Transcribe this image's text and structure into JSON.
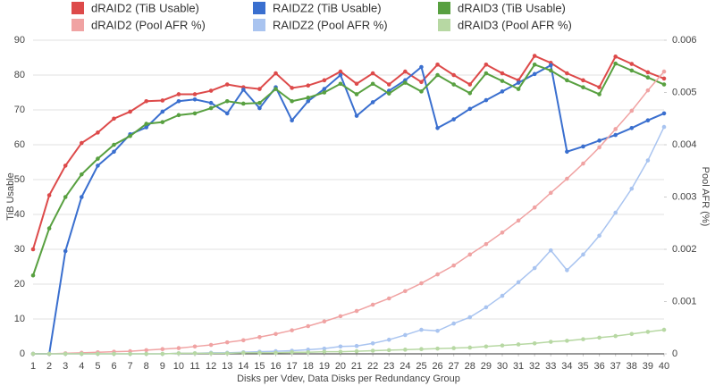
{
  "chart_data": {
    "type": "line",
    "x_label": "Disks per Vdev, Data Disks per Redundancy Group",
    "y_label": "TiB Usable",
    "y2_label": "Pool AFR (%)",
    "x": [
      1,
      2,
      3,
      4,
      5,
      6,
      7,
      8,
      9,
      10,
      11,
      12,
      13,
      14,
      15,
      16,
      17,
      18,
      19,
      20,
      21,
      22,
      23,
      24,
      25,
      26,
      27,
      28,
      29,
      30,
      31,
      32,
      33,
      34,
      35,
      36,
      37,
      38,
      39,
      40
    ],
    "xlim": [
      1,
      40
    ],
    "xticks": [
      1,
      2,
      3,
      4,
      5,
      6,
      7,
      8,
      9,
      10,
      11,
      12,
      13,
      14,
      15,
      16,
      17,
      18,
      19,
      20,
      21,
      22,
      23,
      24,
      25,
      26,
      27,
      28,
      29,
      30,
      31,
      32,
      33,
      34,
      35,
      36,
      37,
      38,
      39,
      40
    ],
    "ylim": [
      0,
      90
    ],
    "yticks": [
      0,
      10,
      20,
      30,
      40,
      50,
      60,
      70,
      80,
      90
    ],
    "y2lim": [
      0,
      0.006
    ],
    "y2ticks": [
      0,
      0.001,
      0.002,
      0.003,
      0.004,
      0.005,
      0.006
    ],
    "grid": true,
    "series": [
      {
        "name": "dRAID2 (TiB Usable)",
        "color": "#dd4a4a",
        "values": [
          30,
          45.5,
          54,
          60.5,
          63.5,
          67.5,
          69.5,
          72.5,
          72.7,
          74.5,
          74.5,
          75.5,
          77.3,
          76.5,
          76,
          80.5,
          76.3,
          77,
          78.5,
          81,
          77.5,
          80.5,
          77.3,
          81,
          78,
          83,
          80,
          77.3,
          83,
          80.5,
          78.5,
          85.5,
          83.5,
          80.5,
          78.5,
          76.5,
          85.3,
          83.2,
          80.8,
          79
        ]
      },
      {
        "name": "RAIDZ2 (TiB Usable)",
        "color": "#3a6fcf",
        "values": [
          0,
          0,
          29.5,
          45,
          54,
          58,
          63,
          65,
          69.5,
          72.5,
          73,
          72,
          69,
          75.8,
          70.5,
          76.5,
          67,
          72.5,
          76,
          80,
          68.3,
          72.2,
          75.5,
          78.5,
          82.3,
          64.8,
          67.3,
          70.3,
          72.8,
          75.3,
          77.8,
          80.3,
          82.8,
          58,
          59.5,
          61.2,
          62.8,
          64.8,
          67,
          69
        ]
      },
      {
        "name": "dRAID3 (TiB Usable)",
        "color": "#58a040",
        "values": [
          22.5,
          36,
          45,
          51.5,
          56,
          60,
          62.5,
          66,
          66.5,
          68.5,
          69,
          70.5,
          72.5,
          71.8,
          72,
          76,
          72.5,
          73.5,
          75,
          77.5,
          74.5,
          77.5,
          74.7,
          77.8,
          75.3,
          80,
          77.3,
          74.8,
          80.5,
          78.3,
          76,
          83,
          81.3,
          78.5,
          76.5,
          74.5,
          83.3,
          81.3,
          79.3,
          77.3
        ]
      },
      {
        "name": "dRAID2 (Pool AFR %)",
        "color": "#f0a3a3",
        "axis": "y2",
        "values": [
          0,
          0,
          1e-05,
          2e-05,
          3e-05,
          4e-05,
          5e-05,
          7e-05,
          9e-05,
          0.00011,
          0.00014,
          0.00017,
          0.00022,
          0.00026,
          0.00032,
          0.00038,
          0.00045,
          0.00053,
          0.00062,
          0.00072,
          0.00082,
          0.00094,
          0.00106,
          0.0012,
          0.00135,
          0.00152,
          0.00169,
          0.0019,
          0.0021,
          0.00232,
          0.00255,
          0.0028,
          0.00308,
          0.00335,
          0.00364,
          0.00395,
          0.0043,
          0.00465,
          0.00504,
          0.0054
        ]
      },
      {
        "name": "RAIDZ2 (Pool AFR %)",
        "color": "#a9c4f0",
        "axis": "y2",
        "values": [
          0,
          0,
          0,
          0,
          0,
          0,
          0,
          0,
          0,
          1e-05,
          1e-05,
          2e-05,
          2e-05,
          3e-05,
          4e-05,
          5e-05,
          6e-05,
          8e-05,
          0.0001,
          0.00014,
          0.00015,
          0.0002,
          0.00027,
          0.00036,
          0.00046,
          0.00044,
          0.00058,
          0.0007,
          0.00089,
          0.00111,
          0.00137,
          0.00164,
          0.00198,
          0.0016,
          0.0019,
          0.00226,
          0.0027,
          0.00316,
          0.0037,
          0.00434
        ]
      },
      {
        "name": "dRAID3 (Pool AFR %)",
        "color": "#b7d8a3",
        "axis": "y2",
        "values": [
          0,
          0,
          0,
          0,
          0,
          0,
          0,
          0,
          0,
          1e-05,
          1e-05,
          1e-05,
          1e-05,
          2e-05,
          2e-05,
          2e-05,
          3e-05,
          3e-05,
          4e-05,
          4e-05,
          5e-05,
          6e-05,
          7e-05,
          8e-05,
          9e-05,
          0.0001,
          0.00011,
          0.00012,
          0.00014,
          0.00016,
          0.00018,
          0.0002,
          0.00023,
          0.00025,
          0.00028,
          0.00031,
          0.00034,
          0.00038,
          0.00042,
          0.00046
        ]
      }
    ]
  }
}
